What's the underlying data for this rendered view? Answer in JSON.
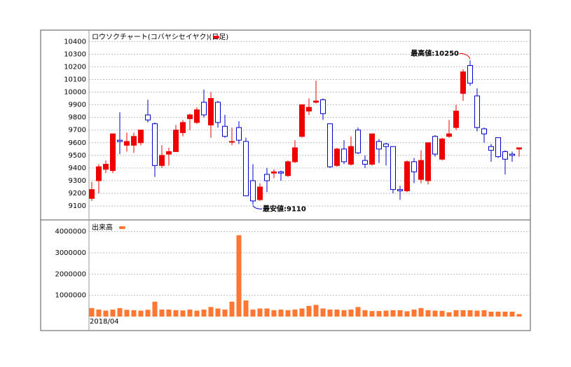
{
  "chart_data": [
    {
      "type": "candlestick",
      "title": "ロウソクチャート(コバヤシセイヤク)(日足)",
      "up_color": "#ee0000",
      "down_color": "#0000cc",
      "categories": [
        "2018/04",
        null,
        null,
        null,
        null,
        null,
        null,
        null,
        null,
        null,
        null,
        null,
        null,
        null,
        null,
        null,
        null,
        null,
        null,
        null,
        null,
        null,
        null,
        null,
        null,
        null,
        null,
        null,
        null,
        null,
        null,
        null,
        null,
        null,
        null,
        null,
        null,
        null,
        null,
        null,
        null,
        null,
        null,
        null,
        null,
        null,
        null,
        null,
        null,
        null,
        null,
        null,
        null,
        null,
        null,
        null,
        null,
        null,
        null,
        null,
        null,
        null
      ],
      "open": [
        9160,
        9300,
        9390,
        9380,
        9620,
        9580,
        9580,
        9600,
        9820,
        9750,
        9420,
        9510,
        9530,
        9680,
        9790,
        9760,
        9920,
        9740,
        9920,
        9730,
        9610,
        9720,
        9610,
        9300,
        9150,
        9350,
        9360,
        9370,
        9340,
        9450,
        9650,
        9850,
        9920,
        9940,
        9750,
        9420,
        9550,
        9430,
        9700,
        9460,
        9430,
        9610,
        9590,
        9570,
        9230,
        9220,
        9450,
        9310,
        9300,
        9650,
        9470,
        9650,
        9720,
        9990,
        10210,
        9970,
        9710,
        9570,
        9640,
        9530,
        9510,
        9550
      ],
      "high": [
        9290,
        9430,
        9460,
        9670,
        9840,
        9680,
        9680,
        9700,
        9940,
        9760,
        9580,
        9560,
        9740,
        9780,
        9830,
        9880,
        10020,
        10000,
        9930,
        9820,
        9720,
        9770,
        9640,
        9430,
        9280,
        9400,
        9390,
        9380,
        9460,
        9620,
        9900,
        9950,
        10090,
        9950,
        9750,
        9560,
        9620,
        9650,
        9720,
        9500,
        9670,
        9630,
        9600,
        9570,
        9260,
        9460,
        9480,
        9540,
        9600,
        9660,
        9640,
        9780,
        9900,
        10180,
        10250,
        10030,
        9720,
        9590,
        9640,
        9540,
        9530,
        9560
      ],
      "low": [
        9140,
        9200,
        9360,
        9360,
        9510,
        9530,
        9520,
        9580,
        9760,
        9330,
        9400,
        9420,
        9530,
        9650,
        9700,
        9750,
        9800,
        9640,
        9720,
        9640,
        9580,
        9590,
        9180,
        9110,
        9140,
        9210,
        9320,
        9300,
        9330,
        9440,
        9640,
        9820,
        9910,
        9780,
        9400,
        9410,
        9430,
        9420,
        9510,
        9400,
        9420,
        9440,
        9420,
        9200,
        9150,
        9210,
        9280,
        9280,
        9270,
        9490,
        9460,
        9640,
        9700,
        9930,
        10050,
        9690,
        9600,
        9450,
        9480,
        9350,
        9450,
        9490
      ],
      "close": [
        9230,
        9410,
        9430,
        9670,
        9610,
        9610,
        9650,
        9700,
        9780,
        9420,
        9500,
        9530,
        9700,
        9760,
        9820,
        9860,
        9820,
        9950,
        9760,
        9650,
        9610,
        9620,
        9180,
        9140,
        9250,
        9300,
        9370,
        9360,
        9450,
        9560,
        9900,
        9880,
        9930,
        9830,
        9410,
        9550,
        9450,
        9570,
        9520,
        9430,
        9670,
        9550,
        9570,
        9230,
        9220,
        9450,
        9370,
        9460,
        9600,
        9510,
        9630,
        9670,
        9850,
        10160,
        10070,
        9720,
        9670,
        9540,
        9490,
        9470,
        9500,
        9560
      ],
      "ylim": [
        8990,
        10490
      ],
      "yticks": [
        9100,
        9200,
        9300,
        9400,
        9500,
        9600,
        9700,
        9800,
        9900,
        10000,
        10100,
        10200,
        10300,
        10400
      ],
      "grid": true,
      "annotations": [
        {
          "text": "最高値:10250",
          "value": 10250,
          "color": "#ee0000"
        },
        {
          "text": "最安値:9110",
          "value": 9110,
          "color": "#0000cc"
        }
      ]
    },
    {
      "type": "bar",
      "title": "出来高",
      "color": "#ff7733",
      "values": [
        400000,
        330000,
        280000,
        330000,
        400000,
        320000,
        300000,
        280000,
        320000,
        700000,
        330000,
        330000,
        300000,
        290000,
        330000,
        280000,
        330000,
        450000,
        380000,
        330000,
        700000,
        3830000,
        760000,
        330000,
        380000,
        380000,
        300000,
        330000,
        300000,
        330000,
        380000,
        500000,
        550000,
        380000,
        330000,
        330000,
        300000,
        330000,
        450000,
        300000,
        260000,
        260000,
        280000,
        300000,
        300000,
        250000,
        330000,
        400000,
        300000,
        280000,
        270000,
        200000,
        300000,
        300000,
        300000,
        280000,
        300000,
        230000,
        230000,
        230000,
        230000,
        120000
      ],
      "ylim": [
        0,
        4550000
      ],
      "yticks": [
        1000000,
        2000000,
        3000000,
        4000000
      ],
      "grid": true
    }
  ]
}
